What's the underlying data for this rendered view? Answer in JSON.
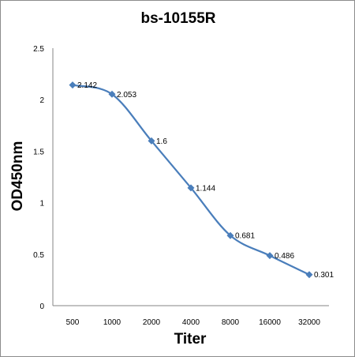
{
  "chart_data": {
    "type": "line",
    "title": "bs-10155R",
    "xlabel": "Titer",
    "ylabel": "OD450nm",
    "categories": [
      "500",
      "1000",
      "2000",
      "4000",
      "8000",
      "16000",
      "32000"
    ],
    "series": [
      {
        "values": [
          2.142,
          2.053,
          1.6,
          1.144,
          0.681,
          0.486,
          0.301
        ],
        "labels": [
          "2.142",
          "2.053",
          "1.6",
          "1.144",
          "0.681",
          "0.486",
          "0.301"
        ],
        "color": "#4a7ebb",
        "marker": "diamond",
        "smooth": true
      }
    ],
    "ylim": [
      0,
      2.5
    ],
    "yticks": [
      "0",
      "0.5",
      "1",
      "1.5",
      "2",
      "2.5"
    ],
    "grid": false,
    "legend": "none"
  }
}
